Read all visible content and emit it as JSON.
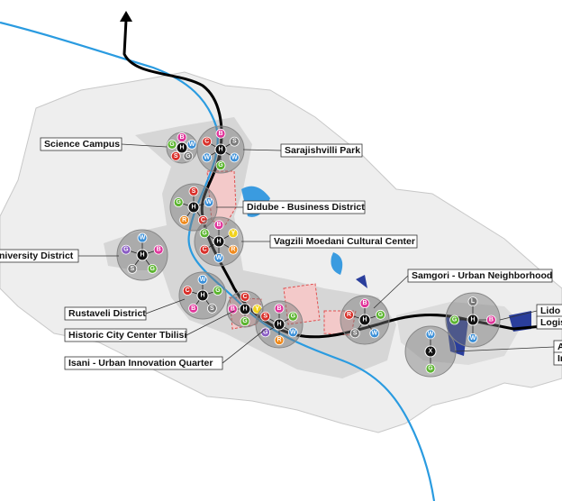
{
  "labels": [
    "Science Campus",
    "Sarajishvilli Park",
    "Didube - Business District",
    "Vagzili Moedani Cultural Center",
    "niversity District",
    "Samgori - Urban Neighborhood",
    "Rustaveli District",
    "Historic City Center Tbilisi",
    "Isani - Urban Innovation Quarter",
    "Lido",
    "Logis",
    "A",
    "In"
  ],
  "hubs": [
    {
      "center": "H",
      "satellites": [
        {
          "letter": "B",
          "color": "#e0359b"
        },
        {
          "letter": "W",
          "color": "#3a8fd8"
        },
        {
          "letter": "G",
          "color": "#7a7a7a"
        },
        {
          "letter": "S",
          "color": "#d9302a"
        },
        {
          "letter": "G",
          "color": "#5cb530"
        }
      ]
    },
    {
      "center": "H",
      "satellites": [
        {
          "letter": "B",
          "color": "#e0359b"
        },
        {
          "letter": "S",
          "color": "#7a7a7a"
        },
        {
          "letter": "W",
          "color": "#3a8fd8"
        },
        {
          "letter": "G",
          "color": "#5cb530"
        },
        {
          "letter": "W",
          "color": "#3a8fd8"
        },
        {
          "letter": "C",
          "color": "#d9302a"
        }
      ]
    },
    {
      "center": "H",
      "satellites": [
        {
          "letter": "S",
          "color": "#d9302a"
        },
        {
          "letter": "W",
          "color": "#3a8fd8"
        },
        {
          "letter": "C",
          "color": "#d9302a"
        },
        {
          "letter": "R",
          "color": "#f08a1c"
        },
        {
          "letter": "G",
          "color": "#5cb530"
        }
      ]
    },
    {
      "center": "H",
      "satellites": [
        {
          "letter": "B",
          "color": "#e0359b"
        },
        {
          "letter": "Y",
          "color": "#f2d21b"
        },
        {
          "letter": "R",
          "color": "#f08a1c"
        },
        {
          "letter": "W",
          "color": "#3a8fd8"
        },
        {
          "letter": "C",
          "color": "#d9302a"
        },
        {
          "letter": "G",
          "color": "#5cb530"
        }
      ]
    },
    {
      "center": "H",
      "satellites": [
        {
          "letter": "W",
          "color": "#3a8fd8"
        },
        {
          "letter": "B",
          "color": "#e0359b"
        },
        {
          "letter": "G",
          "color": "#5cb530"
        },
        {
          "letter": "S",
          "color": "#7a7a7a"
        },
        {
          "letter": "G",
          "color": "#8a5cc4"
        }
      ]
    },
    {
      "center": "H",
      "satellites": [
        {
          "letter": "W",
          "color": "#3a8fd8"
        },
        {
          "letter": "G",
          "color": "#5cb530"
        },
        {
          "letter": "S",
          "color": "#7a7a7a"
        },
        {
          "letter": "B",
          "color": "#e0359b"
        },
        {
          "letter": "C",
          "color": "#d9302a"
        }
      ]
    },
    {
      "center": "H",
      "satellites": [
        {
          "letter": "C",
          "color": "#d9302a"
        },
        {
          "letter": "Y",
          "color": "#f2d21b"
        },
        {
          "letter": "G",
          "color": "#5cb530"
        },
        {
          "letter": "B",
          "color": "#e0359b"
        }
      ]
    },
    {
      "center": "H",
      "satellites": [
        {
          "letter": "B",
          "color": "#e0359b"
        },
        {
          "letter": "G",
          "color": "#5cb530"
        },
        {
          "letter": "W",
          "color": "#3a8fd8"
        },
        {
          "letter": "R",
          "color": "#f08a1c"
        },
        {
          "letter": "G",
          "color": "#8a5cc4"
        },
        {
          "letter": "S",
          "color": "#d9302a"
        }
      ]
    },
    {
      "center": "H",
      "satellites": [
        {
          "letter": "B",
          "color": "#e0359b"
        },
        {
          "letter": "G",
          "color": "#5cb530"
        },
        {
          "letter": "W",
          "color": "#3a8fd8"
        },
        {
          "letter": "S",
          "color": "#7a7a7a"
        },
        {
          "letter": "R",
          "color": "#d9302a"
        }
      ]
    },
    {
      "center": "H",
      "satellites": [
        {
          "letter": "L",
          "color": "#7a7a7a"
        },
        {
          "letter": "B",
          "color": "#e0359b"
        },
        {
          "letter": "W",
          "color": "#3a8fd8"
        },
        {
          "letter": "G",
          "color": "#5cb530"
        }
      ]
    },
    {
      "center": "X",
      "satellites": [
        {
          "letter": "W",
          "color": "#3a8fd8"
        },
        {
          "letter": "G",
          "color": "#5cb530"
        }
      ]
    }
  ]
}
